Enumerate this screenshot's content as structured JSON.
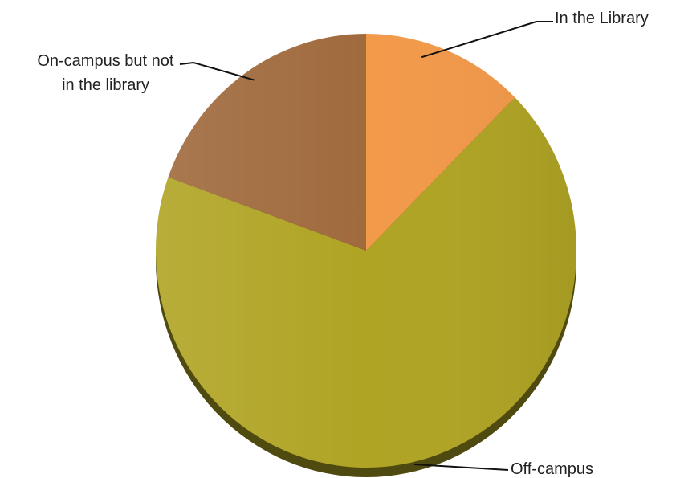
{
  "chart_data": {
    "type": "pie",
    "title": "",
    "slices": [
      {
        "label": "In the Library",
        "value": 12.5,
        "color": "#F2994A"
      },
      {
        "label": "Off-campus",
        "value": 68.0,
        "color": "#B0A424"
      },
      {
        "label": "On-campus but not in the library",
        "label_lines": [
          "On-campus but not",
          "in the library"
        ],
        "value": 19.5,
        "color": "#A06A3D"
      }
    ],
    "start_angle_deg": 0,
    "direction": "clockwise",
    "style": "3d-tilted",
    "legend": "none",
    "labels": "outside-with-leader-lines"
  }
}
